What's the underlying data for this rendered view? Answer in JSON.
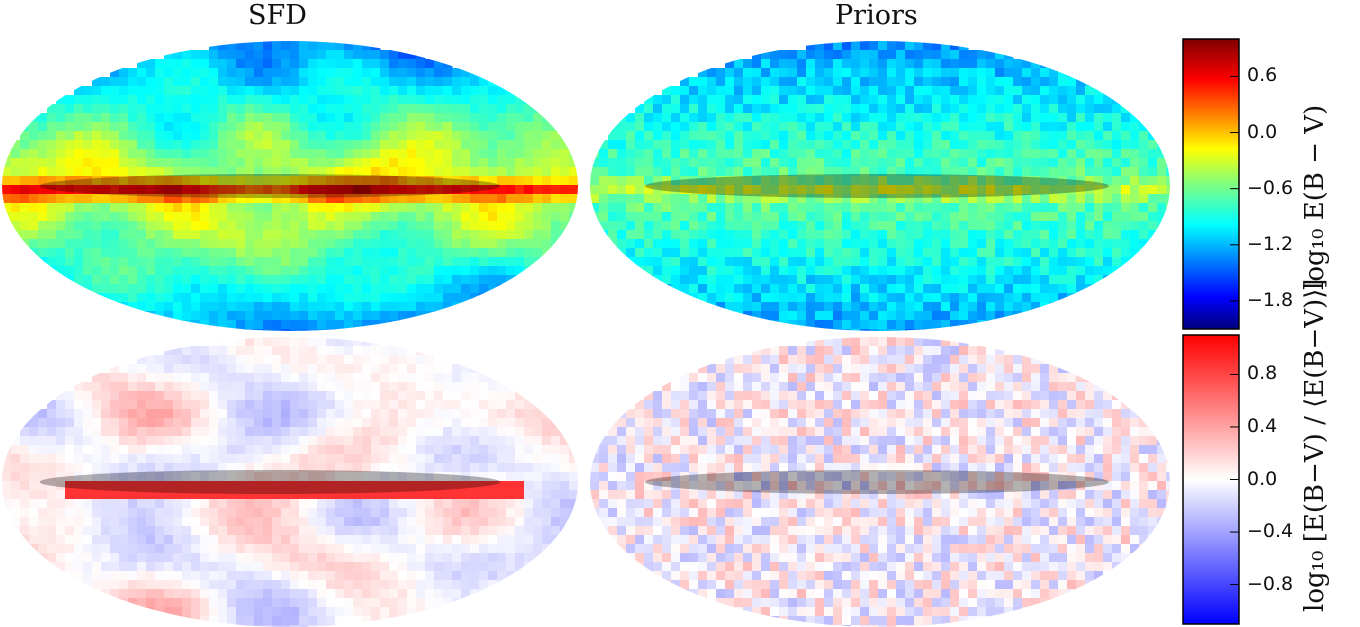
{
  "chart_data": [
    {
      "type": "heatmap",
      "title": "SFD",
      "row": "top",
      "projection": "mollweide",
      "colorbar": "log10 E(B − V)",
      "value_range": [
        -2.1,
        1.0
      ],
      "colormap": "jet",
      "masked_band": "galactic plane (dark overlay)"
    },
    {
      "type": "heatmap",
      "title": "Priors",
      "row": "top",
      "projection": "mollweide",
      "colorbar": "log10 E(B − V)",
      "value_range": [
        -2.1,
        1.0
      ],
      "colormap": "jet",
      "masked_band": "galactic plane (dark overlay)"
    },
    {
      "type": "heatmap",
      "title": "",
      "row": "bottom",
      "column": "SFD",
      "projection": "mollweide",
      "colorbar": "log10 [E(B−V) / ⟨E(B−V)⟩]",
      "value_range": [
        -1.1,
        1.1
      ],
      "colormap": "bwr"
    },
    {
      "type": "heatmap",
      "title": "",
      "row": "bottom",
      "column": "Priors",
      "projection": "mollweide",
      "colorbar": "log10 [E(B−V) / ⟨E(B−V)⟩]",
      "value_range": [
        -1.1,
        1.1
      ],
      "colormap": "bwr"
    }
  ],
  "titles": {
    "sfd": "SFD",
    "priors": "Priors"
  },
  "colorbars": {
    "top": {
      "label": "log₁₀ E(B − V)",
      "ticks": [
        "0.6",
        "0.0",
        "−0.6",
        "−1.2",
        "−1.8"
      ],
      "tick_values": [
        0.6,
        0.0,
        -0.6,
        -1.2,
        -1.8
      ],
      "vmin": -2.1,
      "vmax": 1.0
    },
    "bottom": {
      "label": "log₁₀ [E(B−V) / ⟨E(B−V)⟩]",
      "ticks": [
        "0.8",
        "0.4",
        "0.0",
        "−0.4",
        "−0.8"
      ],
      "tick_values": [
        0.8,
        0.4,
        0.0,
        -0.4,
        -0.8
      ],
      "vmin": -1.1,
      "vmax": 1.1
    }
  },
  "colors": {
    "mask": "#000000",
    "background": "#ffffff"
  }
}
